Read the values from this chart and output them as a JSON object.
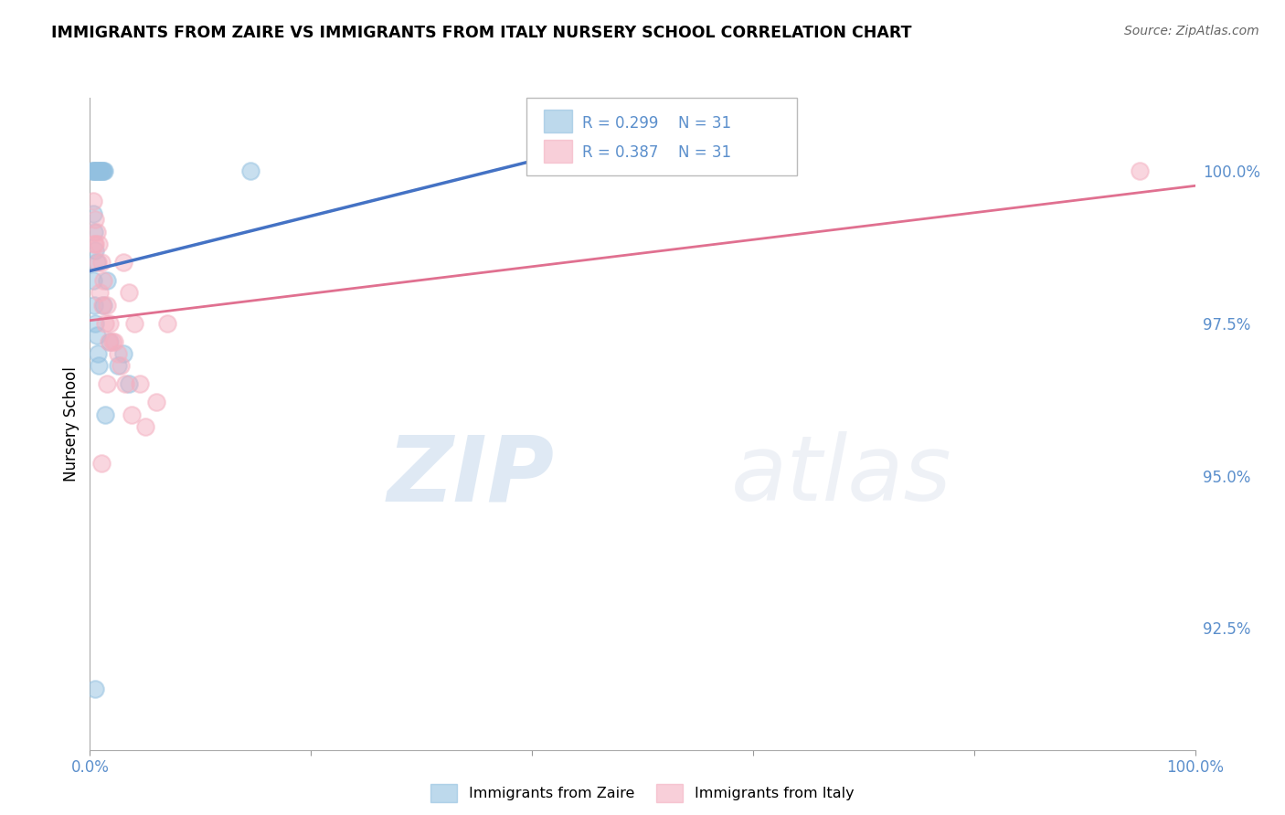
{
  "title": "IMMIGRANTS FROM ZAIRE VS IMMIGRANTS FROM ITALY NURSERY SCHOOL CORRELATION CHART",
  "source": "Source: ZipAtlas.com",
  "ylabel_label": "Nursery School",
  "legend_label_blue": "Immigrants from Zaire",
  "legend_label_pink": "Immigrants from Italy",
  "R_blue": "0.299",
  "N_blue": 31,
  "R_pink": "0.387",
  "N_pink": 31,
  "xlim": [
    0.0,
    100.0
  ],
  "ylim": [
    90.5,
    101.2
  ],
  "yticks": [
    92.5,
    95.0,
    97.5,
    100.0
  ],
  "ytick_labels": [
    "92.5%",
    "95.0%",
    "97.5%",
    "100.0%"
  ],
  "color_blue": "#92c0e0",
  "color_pink": "#f4afc0",
  "line_color_blue": "#4472c4",
  "line_color_pink": "#e07090",
  "watermark_zip": "ZIP",
  "watermark_atlas": "atlas",
  "blue_x": [
    0.2,
    0.3,
    0.4,
    0.5,
    0.6,
    0.7,
    0.8,
    0.9,
    1.0,
    1.1,
    1.2,
    1.3,
    0.3,
    0.4,
    0.5,
    0.6,
    0.3,
    0.4,
    0.5,
    0.6,
    0.7,
    0.8,
    1.5,
    1.8,
    2.5,
    3.0,
    3.5,
    1.2,
    1.4,
    0.5,
    14.5
  ],
  "blue_y": [
    100.0,
    100.0,
    100.0,
    100.0,
    100.0,
    100.0,
    100.0,
    100.0,
    100.0,
    100.0,
    100.0,
    100.0,
    99.3,
    99.0,
    98.7,
    98.5,
    98.2,
    97.8,
    97.5,
    97.3,
    97.0,
    96.8,
    98.2,
    97.2,
    96.8,
    97.0,
    96.5,
    97.8,
    96.0,
    91.5,
    100.0
  ],
  "pink_x": [
    0.3,
    0.5,
    0.6,
    0.8,
    1.0,
    1.2,
    1.5,
    1.8,
    2.0,
    2.5,
    3.0,
    3.5,
    4.0,
    4.5,
    0.4,
    0.7,
    0.9,
    1.1,
    1.4,
    1.7,
    0.5,
    2.2,
    2.8,
    3.2,
    3.8,
    5.0,
    6.0,
    7.0,
    1.5,
    1.0,
    95.0
  ],
  "pink_y": [
    99.5,
    99.2,
    99.0,
    98.8,
    98.5,
    98.2,
    97.8,
    97.5,
    97.2,
    97.0,
    98.5,
    98.0,
    97.5,
    96.5,
    98.8,
    98.5,
    98.0,
    97.8,
    97.5,
    97.2,
    98.8,
    97.2,
    96.8,
    96.5,
    96.0,
    95.8,
    96.2,
    97.5,
    96.5,
    95.2,
    100.0
  ]
}
